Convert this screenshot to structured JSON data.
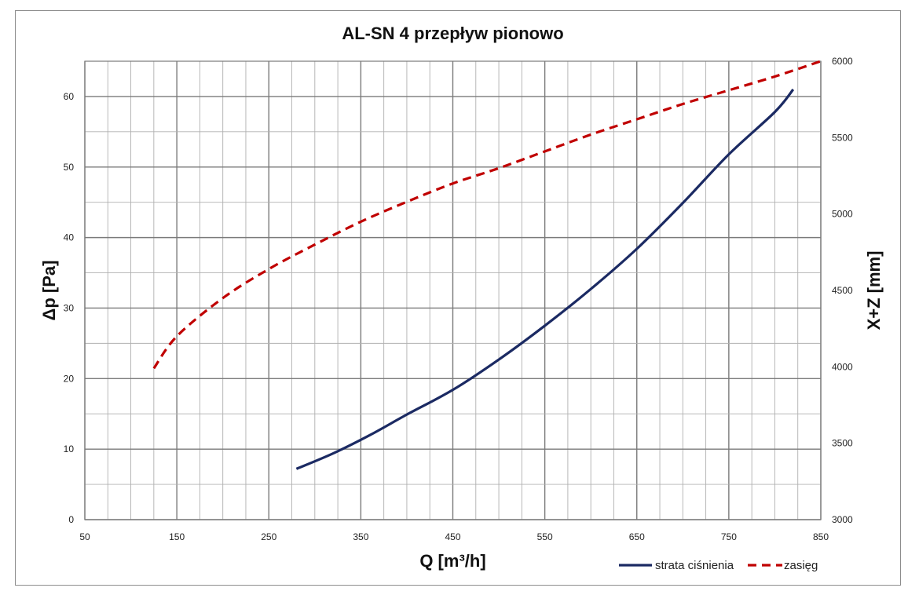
{
  "chart_data": {
    "type": "line",
    "title": "AL-SN 4 przepływ pionowo",
    "xlabel": "Q [m³/h]",
    "ylabel": "Δp [Pa]",
    "y2label": "X+Z [mm]",
    "xlim": [
      50,
      850
    ],
    "ylim": [
      0,
      65
    ],
    "y2lim": [
      3000,
      6000
    ],
    "x_ticks": [
      50,
      150,
      250,
      350,
      450,
      550,
      650,
      750,
      850
    ],
    "y_ticks": [
      0,
      10,
      20,
      30,
      40,
      50,
      60
    ],
    "y2_ticks": [
      3000,
      3500,
      4000,
      4500,
      5000,
      5500,
      6000
    ],
    "grid": true,
    "legend_position": "bottom-right",
    "series": [
      {
        "name": "strata ciśnienia",
        "axis": "left",
        "color": "#1b2a63",
        "style": "solid",
        "x": [
          280,
          320,
          360,
          400,
          450,
          500,
          550,
          600,
          650,
          700,
          750,
          800,
          820
        ],
        "y": [
          7.2,
          9.4,
          12.0,
          14.9,
          18.4,
          22.7,
          27.5,
          32.7,
          38.4,
          44.9,
          51.8,
          57.8,
          61.0
        ]
      },
      {
        "name": "zasięg",
        "axis": "right",
        "color": "#c00000",
        "style": "dashed",
        "x": [
          125,
          150,
          200,
          250,
          300,
          350,
          400,
          450,
          500,
          550,
          600,
          650,
          700,
          750,
          800,
          850
        ],
        "y": [
          3990,
          4200,
          4450,
          4640,
          4800,
          4950,
          5080,
          5200,
          5300,
          5410,
          5520,
          5620,
          5720,
          5810,
          5900,
          6000
        ]
      }
    ]
  }
}
